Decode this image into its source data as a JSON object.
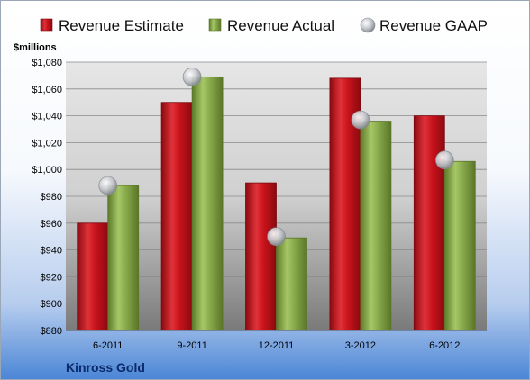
{
  "chart_data": {
    "type": "bar",
    "unit_label": "$millions",
    "company": "Kinross Gold",
    "categories": [
      "6-2011",
      "9-2011",
      "12-2011",
      "3-2012",
      "6-2012"
    ],
    "series": [
      {
        "name": "Revenue Estimate",
        "kind": "bar",
        "color": "#d3121c",
        "values": [
          960,
          1050,
          990,
          1068,
          1040
        ]
      },
      {
        "name": "Revenue Actual",
        "kind": "bar",
        "color": "#8fb04a",
        "values": [
          988,
          1069,
          949,
          1036,
          1006
        ]
      },
      {
        "name": "Revenue GAAP",
        "kind": "marker",
        "color": "#b9bcc2",
        "values": [
          988,
          1069,
          950,
          1037,
          1007
        ]
      }
    ],
    "ylim": [
      880,
      1080
    ],
    "yticks": [
      880,
      900,
      920,
      940,
      960,
      980,
      1000,
      1020,
      1040,
      1060,
      1080
    ],
    "ytick_labels": [
      "$880",
      "$900",
      "$920",
      "$940",
      "$960",
      "$980",
      "$1,000",
      "$1,020",
      "$1,040",
      "$1,060",
      "$1,080"
    ],
    "grid": true,
    "legend_position": "top"
  }
}
